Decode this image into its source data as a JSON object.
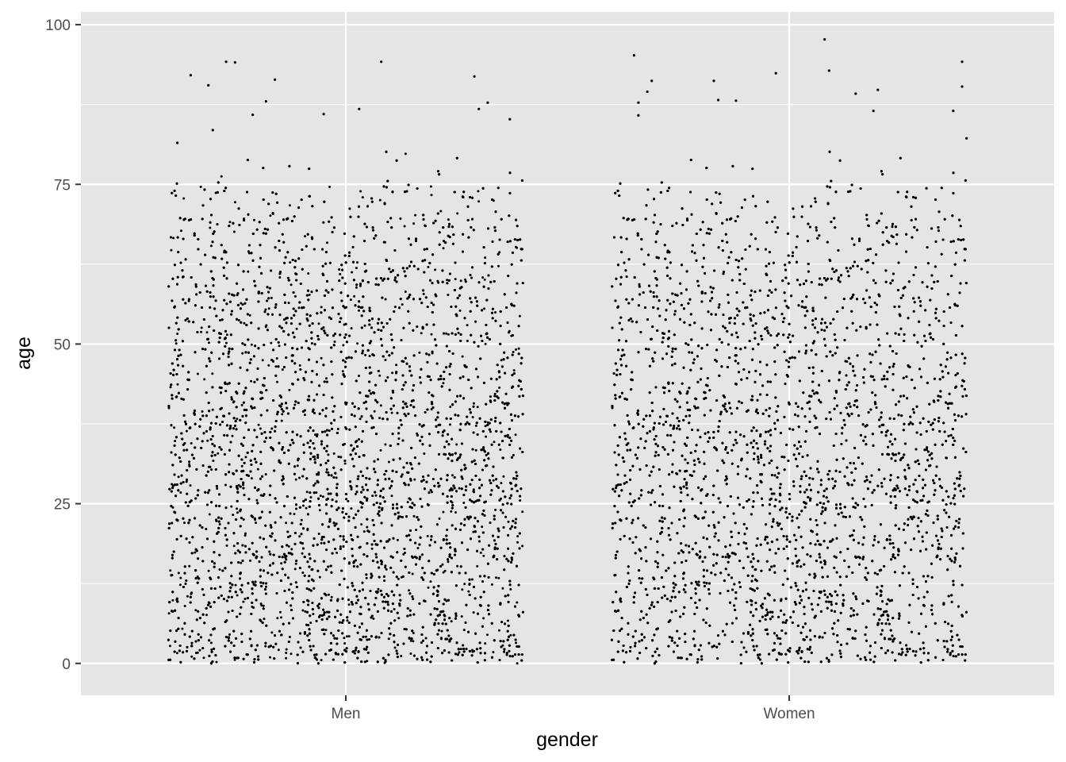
{
  "chart_data": {
    "type": "scatter",
    "jitter": true,
    "xlabel": "gender",
    "ylabel": "age",
    "categories": [
      "Men",
      "Women"
    ],
    "ylim": [
      -5,
      102
    ],
    "y_ticks": [
      0,
      25,
      50,
      75,
      100
    ],
    "y_tick_labels": [
      "0",
      "25",
      "50",
      "75",
      "100"
    ],
    "grid": true,
    "colors": {
      "panel_background": "#e5e5e5",
      "grid_major": "#ffffff",
      "point": "#000000",
      "tick_text": "#4d4d4d"
    },
    "series": [
      {
        "category": "Men",
        "approx_point_count": 9500,
        "age_range": [
          0,
          95
        ],
        "bulk_upper": 75,
        "sparse_outliers": [
          {
            "x_offset": -0.35,
            "y": 92.1
          },
          {
            "x_offset": -0.31,
            "y": 90.5
          },
          {
            "x_offset": -0.27,
            "y": 94.2
          },
          {
            "x_offset": -0.25,
            "y": 94.1
          },
          {
            "x_offset": -0.16,
            "y": 91.4
          },
          {
            "x_offset": -0.18,
            "y": 88.0
          },
          {
            "x_offset": 0.08,
            "y": 94.2
          },
          {
            "x_offset": 0.03,
            "y": 86.8
          },
          {
            "x_offset": 0.29,
            "y": 91.9
          },
          {
            "x_offset": 0.32,
            "y": 87.8
          },
          {
            "x_offset": 0.3,
            "y": 86.8
          },
          {
            "x_offset": 0.37,
            "y": 85.2
          },
          {
            "x_offset": -0.38,
            "y": 81.5
          },
          {
            "x_offset": -0.3,
            "y": 83.5
          },
          {
            "x_offset": -0.21,
            "y": 85.9
          },
          {
            "x_offset": -0.05,
            "y": 86.0
          }
        ]
      },
      {
        "category": "Women",
        "approx_point_count": 9500,
        "age_range": [
          0,
          98
        ],
        "bulk_upper": 75,
        "sparse_outliers": [
          {
            "x_offset": -0.34,
            "y": 87.8
          },
          {
            "x_offset": -0.34,
            "y": 85.8
          },
          {
            "x_offset": -0.35,
            "y": 95.2
          },
          {
            "x_offset": -0.31,
            "y": 91.2
          },
          {
            "x_offset": -0.32,
            "y": 89.5
          },
          {
            "x_offset": -0.17,
            "y": 91.2
          },
          {
            "x_offset": -0.16,
            "y": 88.2
          },
          {
            "x_offset": -0.12,
            "y": 88.1
          },
          {
            "x_offset": -0.03,
            "y": 92.4
          },
          {
            "x_offset": 0.08,
            "y": 97.7
          },
          {
            "x_offset": 0.09,
            "y": 92.8
          },
          {
            "x_offset": 0.15,
            "y": 89.2
          },
          {
            "x_offset": 0.2,
            "y": 89.8
          },
          {
            "x_offset": 0.39,
            "y": 94.2
          },
          {
            "x_offset": 0.39,
            "y": 90.3
          },
          {
            "x_offset": 0.37,
            "y": 86.5
          },
          {
            "x_offset": 0.19,
            "y": 86.5
          },
          {
            "x_offset": 0.4,
            "y": 82.2
          }
        ]
      }
    ]
  }
}
